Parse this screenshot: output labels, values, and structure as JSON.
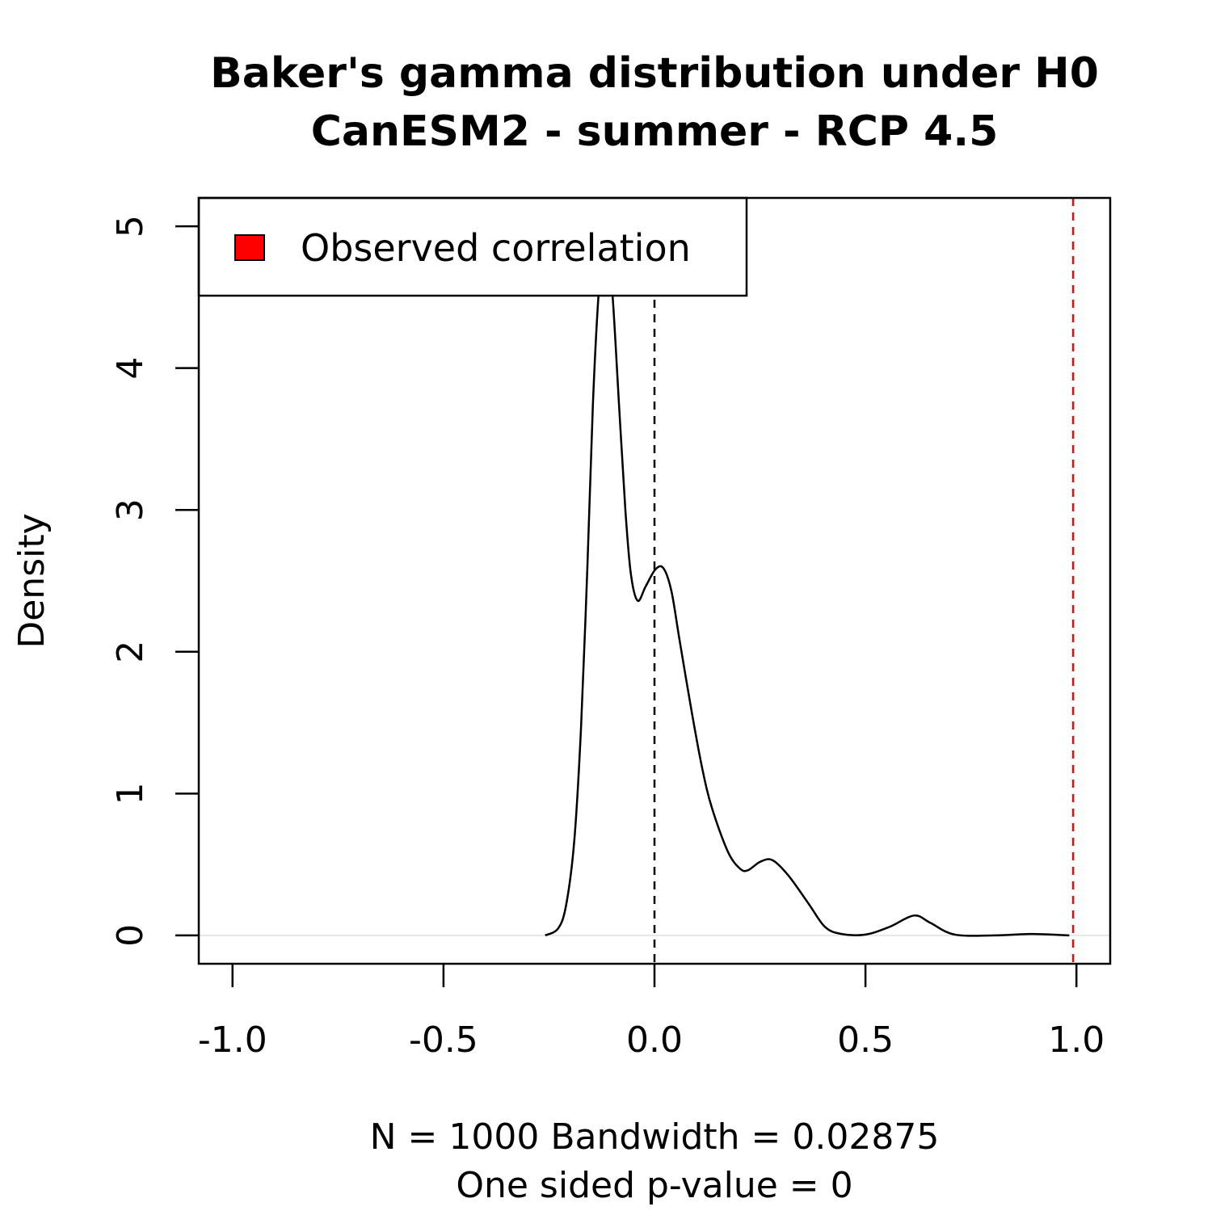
{
  "chart_data": {
    "type": "line",
    "title": "Baker's gamma distribution under H0",
    "subtitle": "CanESM2 - summer - RCP 4.5",
    "xlabel_lines": [
      "N = 1000   Bandwidth = 0.02875",
      "One sided p-value = 0"
    ],
    "ylabel": "Density",
    "xlim": [
      -1.08,
      1.08
    ],
    "ylim": [
      -0.2,
      5.2
    ],
    "xticks": [
      {
        "value": -1,
        "label": "-1.0"
      },
      {
        "value": -0.5,
        "label": "-0.5"
      },
      {
        "value": 0,
        "label": "0.0"
      },
      0.5,
      {
        "value": 1,
        "label": "1.0"
      }
    ],
    "yticks": [
      0,
      1,
      2,
      3,
      4,
      5
    ],
    "x": [
      -0.259,
      -0.228,
      -0.209,
      -0.19,
      -0.174,
      -0.159,
      -0.146,
      -0.132,
      -0.116,
      -0.1,
      -0.084,
      -0.069,
      -0.056,
      -0.04,
      -0.021,
      0.002,
      0.021,
      0.04,
      0.059,
      0.088,
      0.113,
      0.136,
      0.174,
      0.203,
      0.222,
      0.251,
      0.28,
      0.318,
      0.366,
      0.404,
      0.443,
      0.5,
      0.557,
      0.615,
      0.653,
      0.711,
      0.807,
      0.893,
      0.983
    ],
    "series": [
      {
        "name": "Density",
        "color": "#000000",
        "values": [
          0,
          0.05,
          0.22,
          0.67,
          1.47,
          2.6,
          3.74,
          4.54,
          5.0,
          4.54,
          3.74,
          3.0,
          2.55,
          2.36,
          2.46,
          2.58,
          2.59,
          2.43,
          2.09,
          1.58,
          1.18,
          0.9,
          0.59,
          0.47,
          0.46,
          0.52,
          0.53,
          0.42,
          0.22,
          0.06,
          0.01,
          0.006,
          0.06,
          0.14,
          0.09,
          0.006,
          0,
          0.01,
          0
        ]
      }
    ],
    "reference_line": {
      "value": 0,
      "color": "#000000"
    },
    "observed": {
      "name": "Observed correlation",
      "value": 0.992,
      "color": "#ff0000"
    },
    "legend": "top-left"
  }
}
